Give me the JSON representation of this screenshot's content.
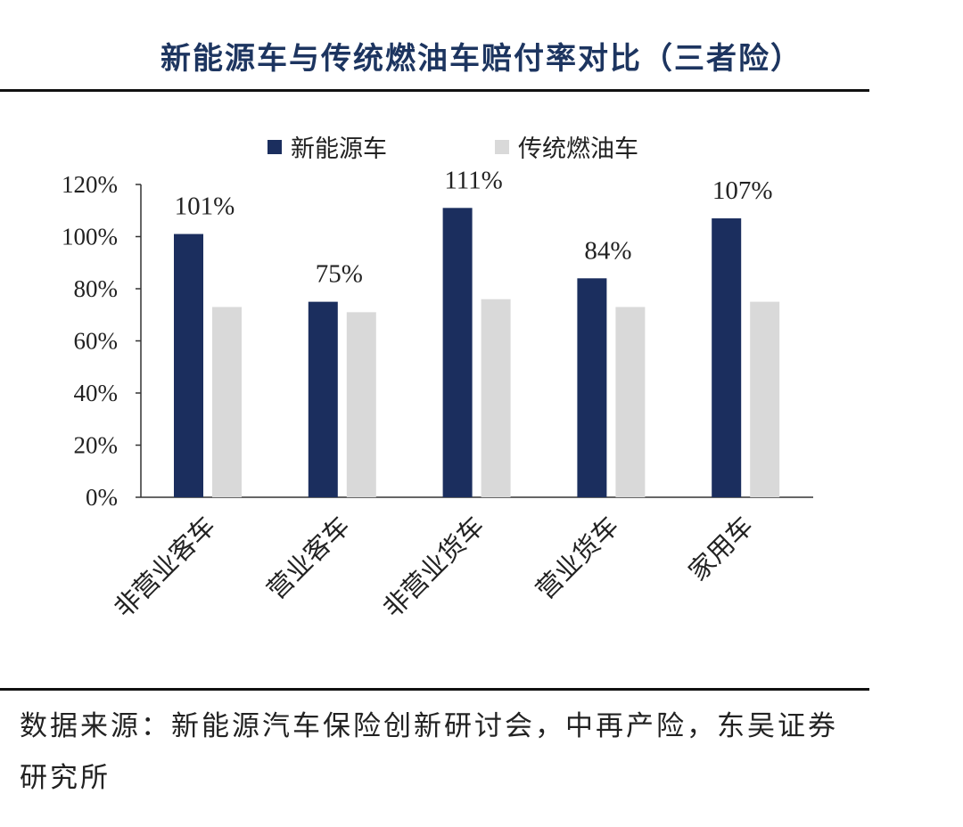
{
  "chart_data": {
    "type": "bar",
    "title": "新能源车与传统燃油车赔付率对比（三者险）",
    "categories": [
      "非营业客车",
      "营业客车",
      "非营业货车",
      "营业货车",
      "家用车"
    ],
    "series": [
      {
        "name": "新能源车",
        "values": [
          101,
          75,
          111,
          84,
          107
        ],
        "color": "#1b2e5e",
        "labels": [
          "101%",
          "75%",
          "111%",
          "84%",
          "107%"
        ]
      },
      {
        "name": "传统燃油车",
        "values": [
          73,
          71,
          76,
          73,
          75
        ],
        "color": "#d9d9d9"
      }
    ],
    "y_ticks": [
      "0%",
      "20%",
      "40%",
      "60%",
      "80%",
      "100%",
      "120%"
    ],
    "ylim": [
      0,
      120
    ],
    "grid": false,
    "legend_position": "top-center"
  },
  "source_text": "数据来源：新能源汽车保险创新研讨会，中再产险，东吴证券研究所"
}
